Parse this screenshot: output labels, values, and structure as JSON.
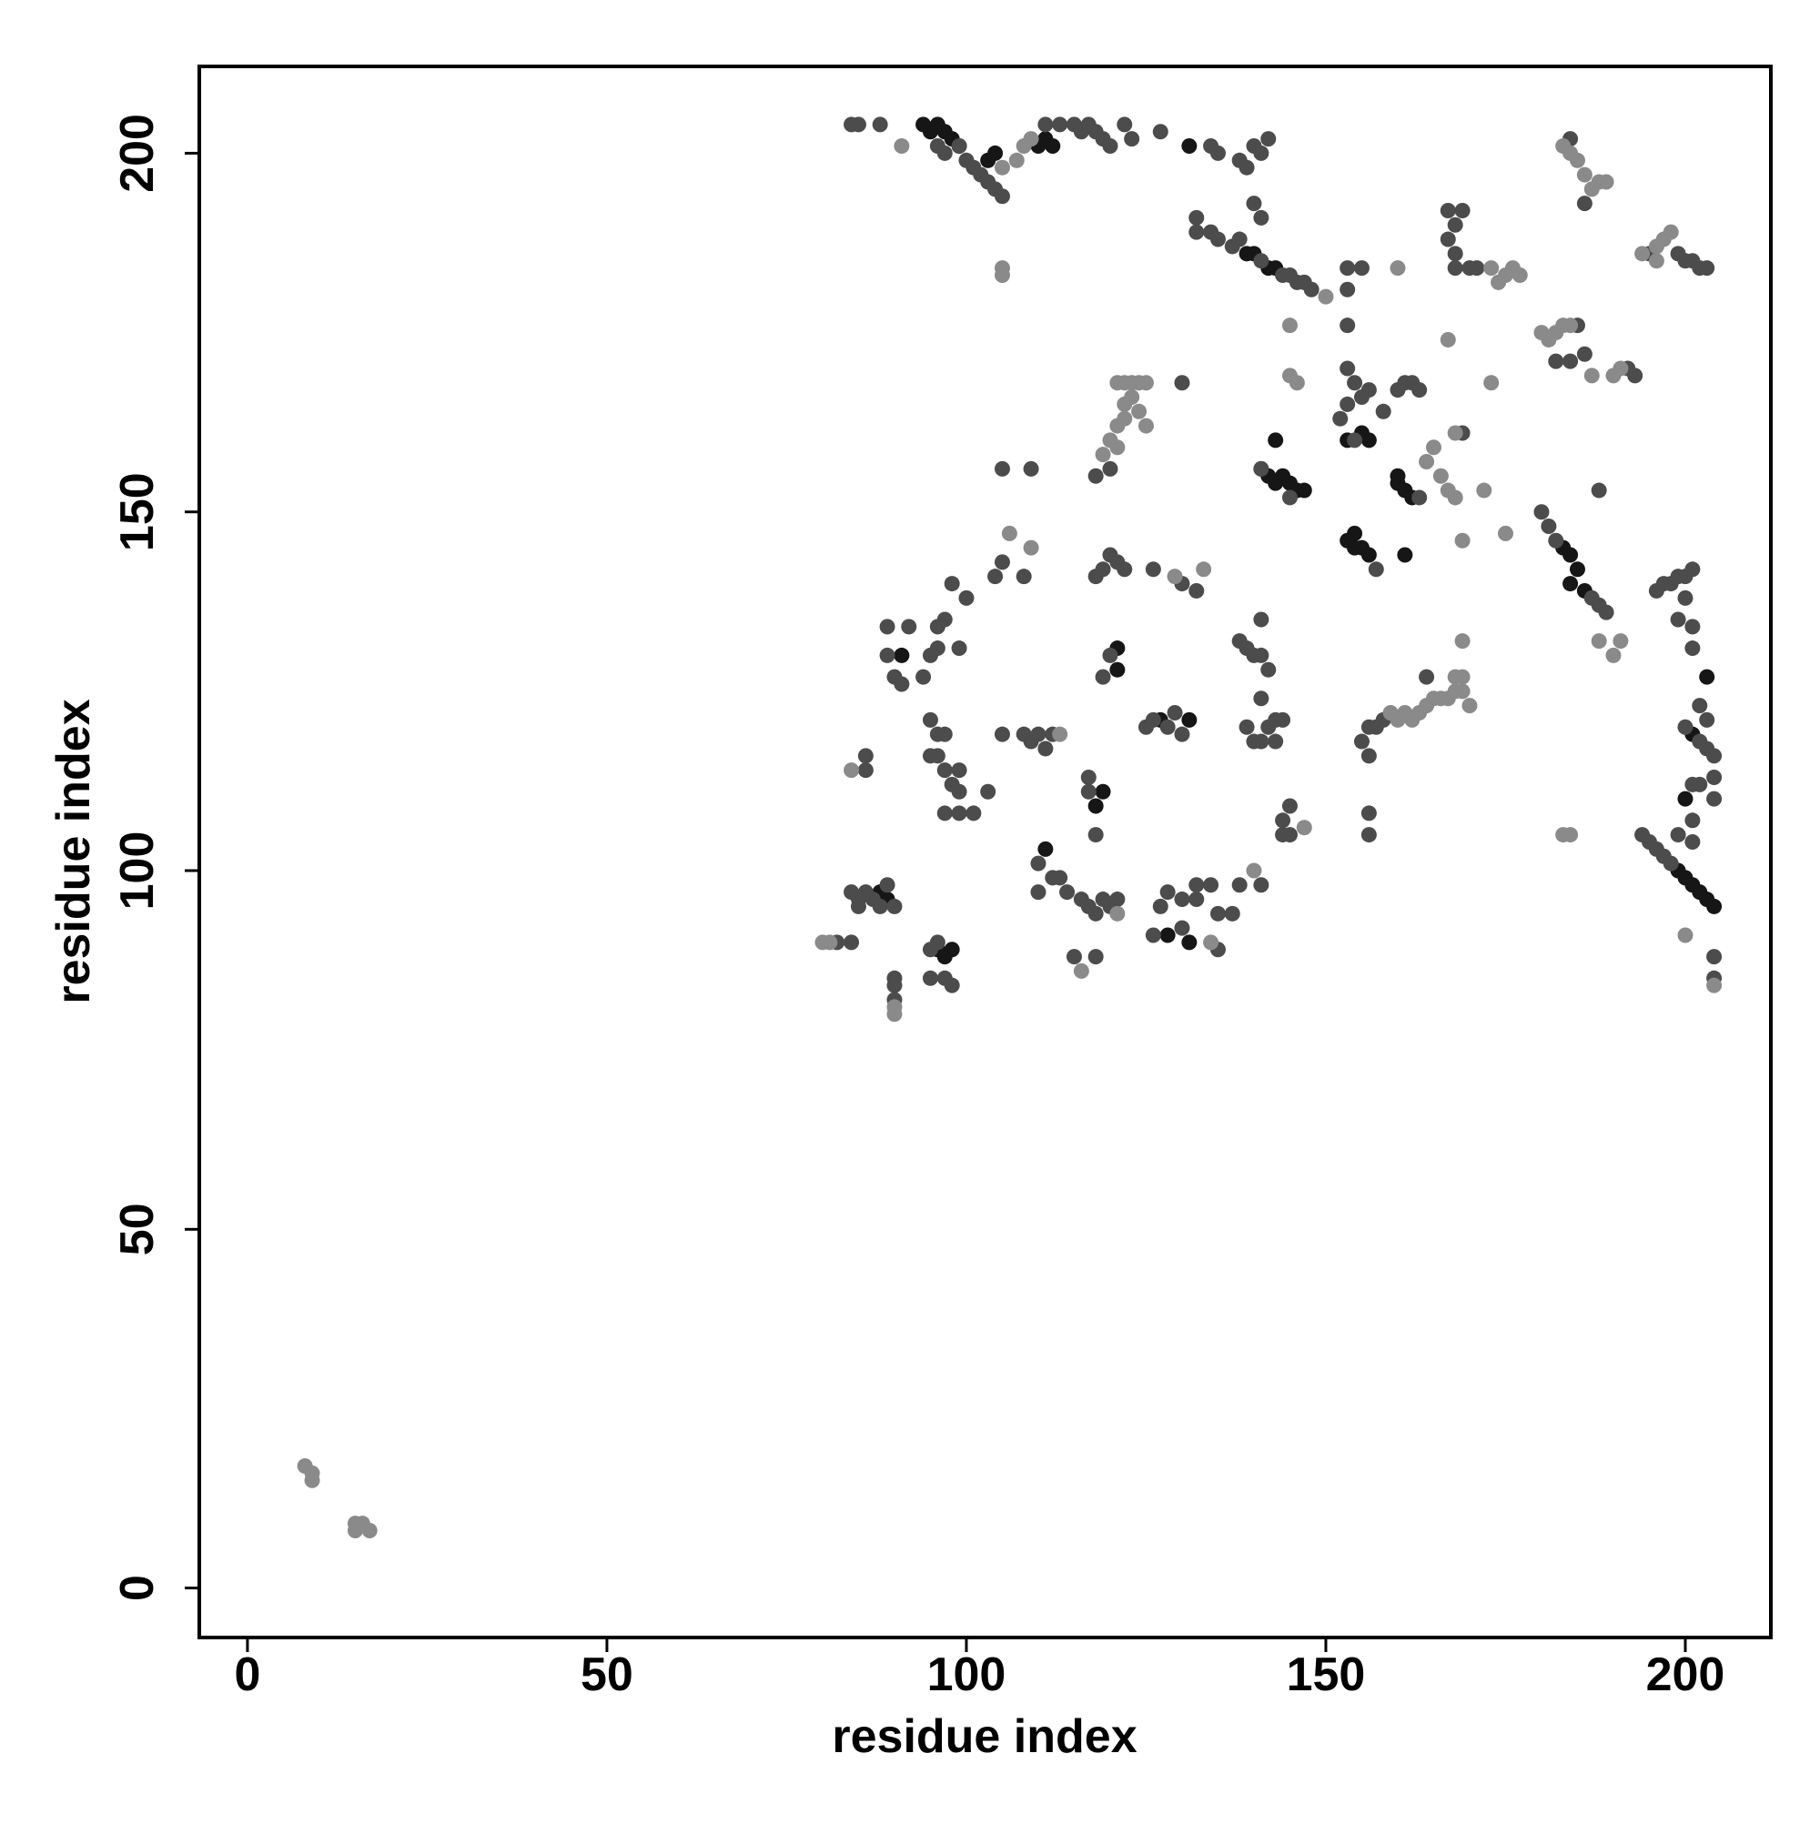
{
  "chart_data": {
    "type": "scatter",
    "x_label": "residue index",
    "y_label": "residue index",
    "xlim": [
      -6.7,
      211.9
    ],
    "ylim": [
      -6.9,
      212.1
    ],
    "xticks": [
      0,
      50,
      100,
      150,
      200
    ],
    "yticks": [
      0,
      50,
      100,
      150,
      200
    ],
    "grid": false,
    "series": [
      {
        "color": "#161616",
        "x": [
          94,
          95,
          96,
          97,
          98,
          99,
          103,
          104,
          110,
          111,
          112,
          131,
          141,
          142,
          143,
          144,
          145,
          146,
          147,
          153,
          154,
          155,
          156,
          154,
          153,
          155,
          156,
          160,
          161,
          162,
          160,
          183,
          184,
          185,
          184,
          186,
          199,
          200,
          201,
          202,
          203,
          204,
          91,
          121,
          121,
          119,
          118,
          127,
          131,
          131,
          128,
          111,
          89,
          88,
          96,
          98,
          97,
          143,
          161,
          142,
          143,
          139,
          140,
          200,
          201,
          203
        ],
        "values": [
          204,
          203,
          204,
          203,
          202,
          201,
          199,
          200,
          201,
          202,
          201,
          201,
          156,
          155,
          154,
          155,
          154,
          153,
          153,
          146,
          145,
          145,
          144,
          147,
          160,
          161,
          160,
          154,
          153,
          152,
          155,
          145,
          144,
          142,
          140,
          139,
          100,
          99,
          98,
          97,
          96,
          95,
          130,
          131,
          128,
          111,
          109,
          121,
          121,
          90,
          91,
          103,
          96,
          97,
          89,
          89,
          88,
          160,
          144,
          184,
          184,
          186,
          186,
          110,
          119,
          127
        ]
      },
      {
        "color": "#4c4c4c",
        "x": [
          84,
          85,
          88,
          96,
          97,
          99,
          100,
          101,
          102,
          103,
          104,
          105,
          111,
          113,
          115,
          116,
          117,
          118,
          119,
          120,
          122,
          123,
          127,
          134,
          135,
          138,
          139,
          140,
          141,
          142,
          132,
          132,
          134,
          135,
          137,
          138,
          141,
          144,
          145,
          146,
          147,
          148,
          140,
          141,
          153,
          155,
          153,
          153,
          167,
          168,
          169,
          167,
          168,
          170,
          171,
          168,
          184,
          186,
          195,
          199,
          200,
          201,
          202,
          203,
          185,
          186,
          184,
          192,
          193,
          182,
          118,
          120,
          130,
          153,
          154,
          153,
          152,
          154,
          155,
          156,
          158,
          160,
          161,
          162,
          163,
          169,
          141,
          145,
          163,
          157,
          180,
          181,
          182,
          187,
          188,
          189,
          188,
          196,
          197,
          198,
          199,
          200,
          201,
          200,
          199,
          201,
          201,
          200,
          202,
          203,
          204,
          203,
          202,
          201,
          201,
          202,
          204,
          204,
          194,
          195,
          196,
          197,
          198,
          201,
          199,
          204,
          204,
          86,
          86,
          89,
          92,
          90,
          91,
          89,
          94,
          95,
          96,
          96,
          97,
          98,
          100,
          99,
          95,
          96,
          97,
          95,
          96,
          97,
          98,
          99,
          97,
          99,
          101,
          99,
          103,
          104,
          105,
          108,
          109,
          105,
          105,
          108,
          109,
          110,
          111,
          112,
          110,
          112,
          113,
          110,
          114,
          116,
          117,
          118,
          119,
          120,
          121,
          117,
          118,
          117,
          119,
          120,
          118,
          119,
          120,
          121,
          122,
          126,
          130,
          132,
          125,
          126,
          128,
          129,
          130,
          135,
          137,
          138,
          134,
          132,
          126,
          127,
          128,
          130,
          130,
          132,
          135,
          141,
          138,
          139,
          140,
          141,
          142,
          141,
          141,
          139,
          140,
          141,
          142,
          143,
          144,
          143,
          144,
          144,
          145,
          145,
          156,
          157,
          158,
          155,
          156,
          164,
          156,
          156,
          84,
          85,
          85,
          87,
          89,
          88,
          86,
          90,
          82,
          84,
          95,
          95,
          97,
          96,
          98,
          90,
          90,
          90,
          115,
          118
        ],
        "values": [
          204,
          204,
          204,
          201,
          200,
          201,
          199,
          198,
          197,
          196,
          195,
          194,
          204,
          204,
          204,
          203,
          204,
          203,
          202,
          201,
          204,
          202,
          203,
          201,
          200,
          199,
          198,
          201,
          200,
          202,
          191,
          189,
          189,
          188,
          187,
          188,
          185,
          183,
          183,
          182,
          182,
          181,
          193,
          191,
          184,
          184,
          181,
          176,
          192,
          190,
          192,
          188,
          186,
          184,
          184,
          184,
          202,
          193,
          186,
          186,
          185,
          185,
          184,
          184,
          176,
          172,
          171,
          170,
          169,
          171,
          155,
          156,
          168,
          170,
          168,
          165,
          163,
          160,
          166,
          167,
          164,
          167,
          168,
          168,
          167,
          161,
          156,
          152,
          152,
          142,
          150,
          148,
          146,
          138,
          137,
          136,
          153,
          139,
          140,
          140,
          141,
          141,
          142,
          138,
          135,
          134,
          131,
          120,
          118,
          117,
          116,
          121,
          123,
          112,
          107,
          112,
          110,
          113,
          105,
          104,
          103,
          102,
          101,
          104,
          105,
          88,
          85,
          116,
          114,
          134,
          134,
          127,
          126,
          130,
          127,
          130,
          131,
          134,
          135,
          140,
          138,
          131,
          121,
          119,
          119,
          116,
          116,
          114,
          112,
          114,
          108,
          108,
          108,
          111,
          111,
          141,
          143,
          141,
          156,
          156,
          119,
          119,
          118,
          119,
          117,
          119,
          101,
          99,
          99,
          97,
          97,
          96,
          95,
          94,
          96,
          95,
          96,
          111,
          105,
          113,
          127,
          130,
          141,
          142,
          144,
          143,
          142,
          142,
          140,
          139,
          120,
          121,
          120,
          122,
          119,
          94,
          94,
          98,
          98,
          98,
          91,
          95,
          97,
          92,
          96,
          96,
          89,
          98,
          132,
          131,
          130,
          130,
          128,
          124,
          135,
          120,
          118,
          118,
          120,
          121,
          121,
          118,
          107,
          105,
          109,
          105,
          120,
          120,
          121,
          118,
          116,
          127,
          108,
          105,
          97,
          96,
          95,
          96,
          98,
          95,
          97,
          95,
          90,
          90,
          89,
          85,
          85,
          90,
          84,
          85,
          84,
          82,
          88,
          88
        ]
      },
      {
        "color": "#8a8a8a",
        "x": [
          8,
          9,
          9,
          15,
          16,
          17,
          15,
          121,
          122,
          123,
          124,
          125,
          122,
          123,
          124,
          122,
          121,
          120,
          119,
          121,
          125,
          159,
          160,
          161,
          162,
          163,
          164,
          165,
          166,
          167,
          168,
          169,
          170,
          168,
          169,
          169,
          183,
          184,
          185,
          186,
          187,
          188,
          189,
          194,
          196,
          197,
          198,
          196,
          180,
          181,
          182,
          183,
          184,
          187,
          190,
          191,
          91,
          105,
          105,
          105,
          107,
          108,
          109,
          146,
          160,
          164,
          165,
          168,
          173,
          174,
          175,
          176,
          177,
          167,
          172,
          175,
          169,
          173,
          166,
          167,
          168,
          190,
          191,
          188,
          84,
          80,
          81,
          90,
          90,
          113,
          116,
          121,
          134,
          140,
          147,
          200,
          204,
          183,
          184,
          145,
          145,
          150,
          106,
          109,
          129,
          133
        ],
        "values": [
          17,
          16,
          15,
          9,
          9,
          8,
          8,
          168,
          168,
          168,
          168,
          168,
          165,
          166,
          164,
          163,
          162,
          160,
          158,
          159,
          162,
          122,
          121,
          122,
          121,
          122,
          123,
          124,
          124,
          124,
          125,
          125,
          123,
          127,
          127,
          132,
          201,
          200,
          199,
          197,
          195,
          196,
          196,
          186,
          187,
          188,
          189,
          185,
          175,
          174,
          175,
          176,
          176,
          169,
          169,
          170,
          201,
          198,
          184,
          183,
          199,
          201,
          202,
          168,
          184,
          157,
          159,
          161,
          184,
          182,
          183,
          184,
          183,
          174,
          153,
          147,
          146,
          168,
          155,
          153,
          152,
          130,
          132,
          132,
          114,
          90,
          90,
          80,
          81,
          119,
          86,
          94,
          90,
          100,
          106,
          91,
          84,
          105,
          105,
          176,
          169,
          180,
          147,
          145,
          141,
          142
        ]
      }
    ]
  }
}
